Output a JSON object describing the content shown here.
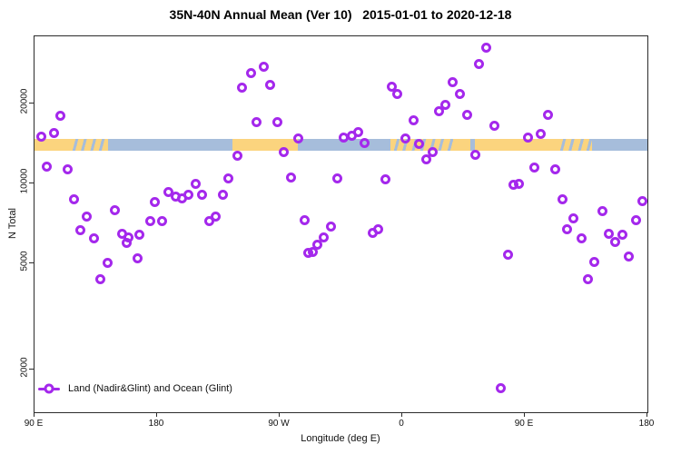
{
  "chart_data": {
    "type": "scatter",
    "title": "35N-40N Annual Mean (Ver 10)   2015-01-01 to 2020-12-18",
    "xlabel": "Longitude (deg E)",
    "ylabel": "N Total",
    "grid": false,
    "x_axis": {
      "range_deg": [
        90,
        540
      ],
      "ticks_deg": [
        90,
        180,
        270,
        360,
        450,
        540
      ],
      "tick_labels": [
        "90 E",
        "180",
        "90 W",
        "0",
        "90 E",
        "180"
      ]
    },
    "y_axis": {
      "scale": "log10",
      "range": [
        1380,
        35700
      ],
      "ticks": [
        20000,
        10000,
        5000,
        2000
      ],
      "tick_labels": [
        "20000",
        "10000",
        "5000",
        "2000"
      ]
    },
    "legend": {
      "label": "Land (Nadir&Glint) and Ocean (Glint)",
      "position": "bottom-left",
      "marker": "open-circle-on-line"
    },
    "colors": {
      "point": "#A428EC",
      "ocean": "#A6BDDB",
      "land": "#FBD47E",
      "axis": "#2b2b2b"
    },
    "map_strip": {
      "description": "land/ocean surface strip along longitude",
      "y_top_value": 14700,
      "y_bottom_value": 13300,
      "segments": [
        {
          "start_deg": 90,
          "end_deg": 115,
          "surface": "land"
        },
        {
          "start_deg": 115,
          "end_deg": 144,
          "surface": "mixed"
        },
        {
          "start_deg": 144,
          "end_deg": 235,
          "surface": "ocean"
        },
        {
          "start_deg": 235,
          "end_deg": 283,
          "surface": "land"
        },
        {
          "start_deg": 283,
          "end_deg": 351,
          "surface": "ocean"
        },
        {
          "start_deg": 351,
          "end_deg": 397,
          "surface": "mixed"
        },
        {
          "start_deg": 397,
          "end_deg": 410,
          "surface": "land"
        },
        {
          "start_deg": 410,
          "end_deg": 413,
          "surface": "ocean"
        },
        {
          "start_deg": 413,
          "end_deg": 473,
          "surface": "land"
        },
        {
          "start_deg": 473,
          "end_deg": 499,
          "surface": "mixed"
        },
        {
          "start_deg": 499,
          "end_deg": 540,
          "surface": "ocean"
        }
      ]
    },
    "point_format": [
      "x_deg_axis",
      "n_total"
    ],
    "series": [
      {
        "name": "Land (Nadir&Glint) and Ocean (Glint)",
        "points": [
          [
            94.7,
            15100
          ],
          [
            98.7,
            11600
          ],
          [
            104,
            15500
          ],
          [
            108.7,
            18000
          ],
          [
            114,
            11300
          ],
          [
            118.7,
            8750
          ],
          [
            123.3,
            6700
          ],
          [
            128,
            7530
          ],
          [
            133.3,
            6240
          ],
          [
            138,
            4380
          ],
          [
            143.3,
            5050
          ],
          [
            148.7,
            7960
          ],
          [
            154,
            6490
          ],
          [
            157.3,
            6000
          ],
          [
            158.7,
            6290
          ],
          [
            165.3,
            5250
          ],
          [
            166.7,
            6450
          ],
          [
            174.7,
            7240
          ],
          [
            178,
            8550
          ],
          [
            183.3,
            7240
          ],
          [
            188,
            9320
          ],
          [
            193.3,
            8960
          ],
          [
            198,
            8830
          ],
          [
            202.7,
            9100
          ],
          [
            208,
            10000
          ],
          [
            212.7,
            9100
          ],
          [
            218,
            7240
          ],
          [
            222.7,
            7530
          ],
          [
            228,
            9070
          ],
          [
            232,
            10500
          ],
          [
            238.7,
            12800
          ],
          [
            242,
            23000
          ],
          [
            248.7,
            26000
          ],
          [
            252.7,
            17000
          ],
          [
            258,
            27500
          ],
          [
            262.7,
            23500
          ],
          [
            268,
            17000
          ],
          [
            272.7,
            13200
          ],
          [
            278,
            10600
          ],
          [
            283.3,
            14800
          ],
          [
            288,
            7300
          ],
          [
            290.7,
            5500
          ],
          [
            294,
            5550
          ],
          [
            297.3,
            5900
          ],
          [
            302,
            6290
          ],
          [
            307.3,
            6900
          ],
          [
            312,
            10500
          ],
          [
            316.7,
            14900
          ],
          [
            322.7,
            15200
          ],
          [
            327.3,
            15700
          ],
          [
            332,
            14200
          ],
          [
            338,
            6550
          ],
          [
            342,
            6750
          ],
          [
            347.3,
            10400
          ],
          [
            352,
            23200
          ],
          [
            356,
            21800
          ],
          [
            362,
            14800
          ],
          [
            368,
            17300
          ],
          [
            372,
            14100
          ],
          [
            377.3,
            12400
          ],
          [
            382,
            13200
          ],
          [
            386.7,
            18700
          ],
          [
            391.3,
            19800
          ],
          [
            396.7,
            24100
          ],
          [
            402,
            21800
          ],
          [
            407.3,
            18200
          ],
          [
            413.3,
            12900
          ],
          [
            416,
            28200
          ],
          [
            421.3,
            32500
          ],
          [
            427.3,
            16500
          ],
          [
            432,
            1700
          ],
          [
            437.3,
            5420
          ],
          [
            441.3,
            9900
          ],
          [
            445.3,
            10000
          ],
          [
            452,
            14900
          ],
          [
            456.7,
            11500
          ],
          [
            461.3,
            15400
          ],
          [
            466.7,
            18200
          ],
          [
            472,
            11300
          ],
          [
            477.3,
            8750
          ],
          [
            480.7,
            6750
          ],
          [
            485.3,
            7400
          ],
          [
            491.3,
            6240
          ],
          [
            496,
            4380
          ],
          [
            500.7,
            5080
          ],
          [
            506.7,
            7900
          ],
          [
            511.3,
            6480
          ],
          [
            516,
            6050
          ],
          [
            521.3,
            6440
          ],
          [
            526,
            5330
          ],
          [
            531.3,
            7320
          ],
          [
            536,
            8630
          ]
        ]
      }
    ]
  }
}
